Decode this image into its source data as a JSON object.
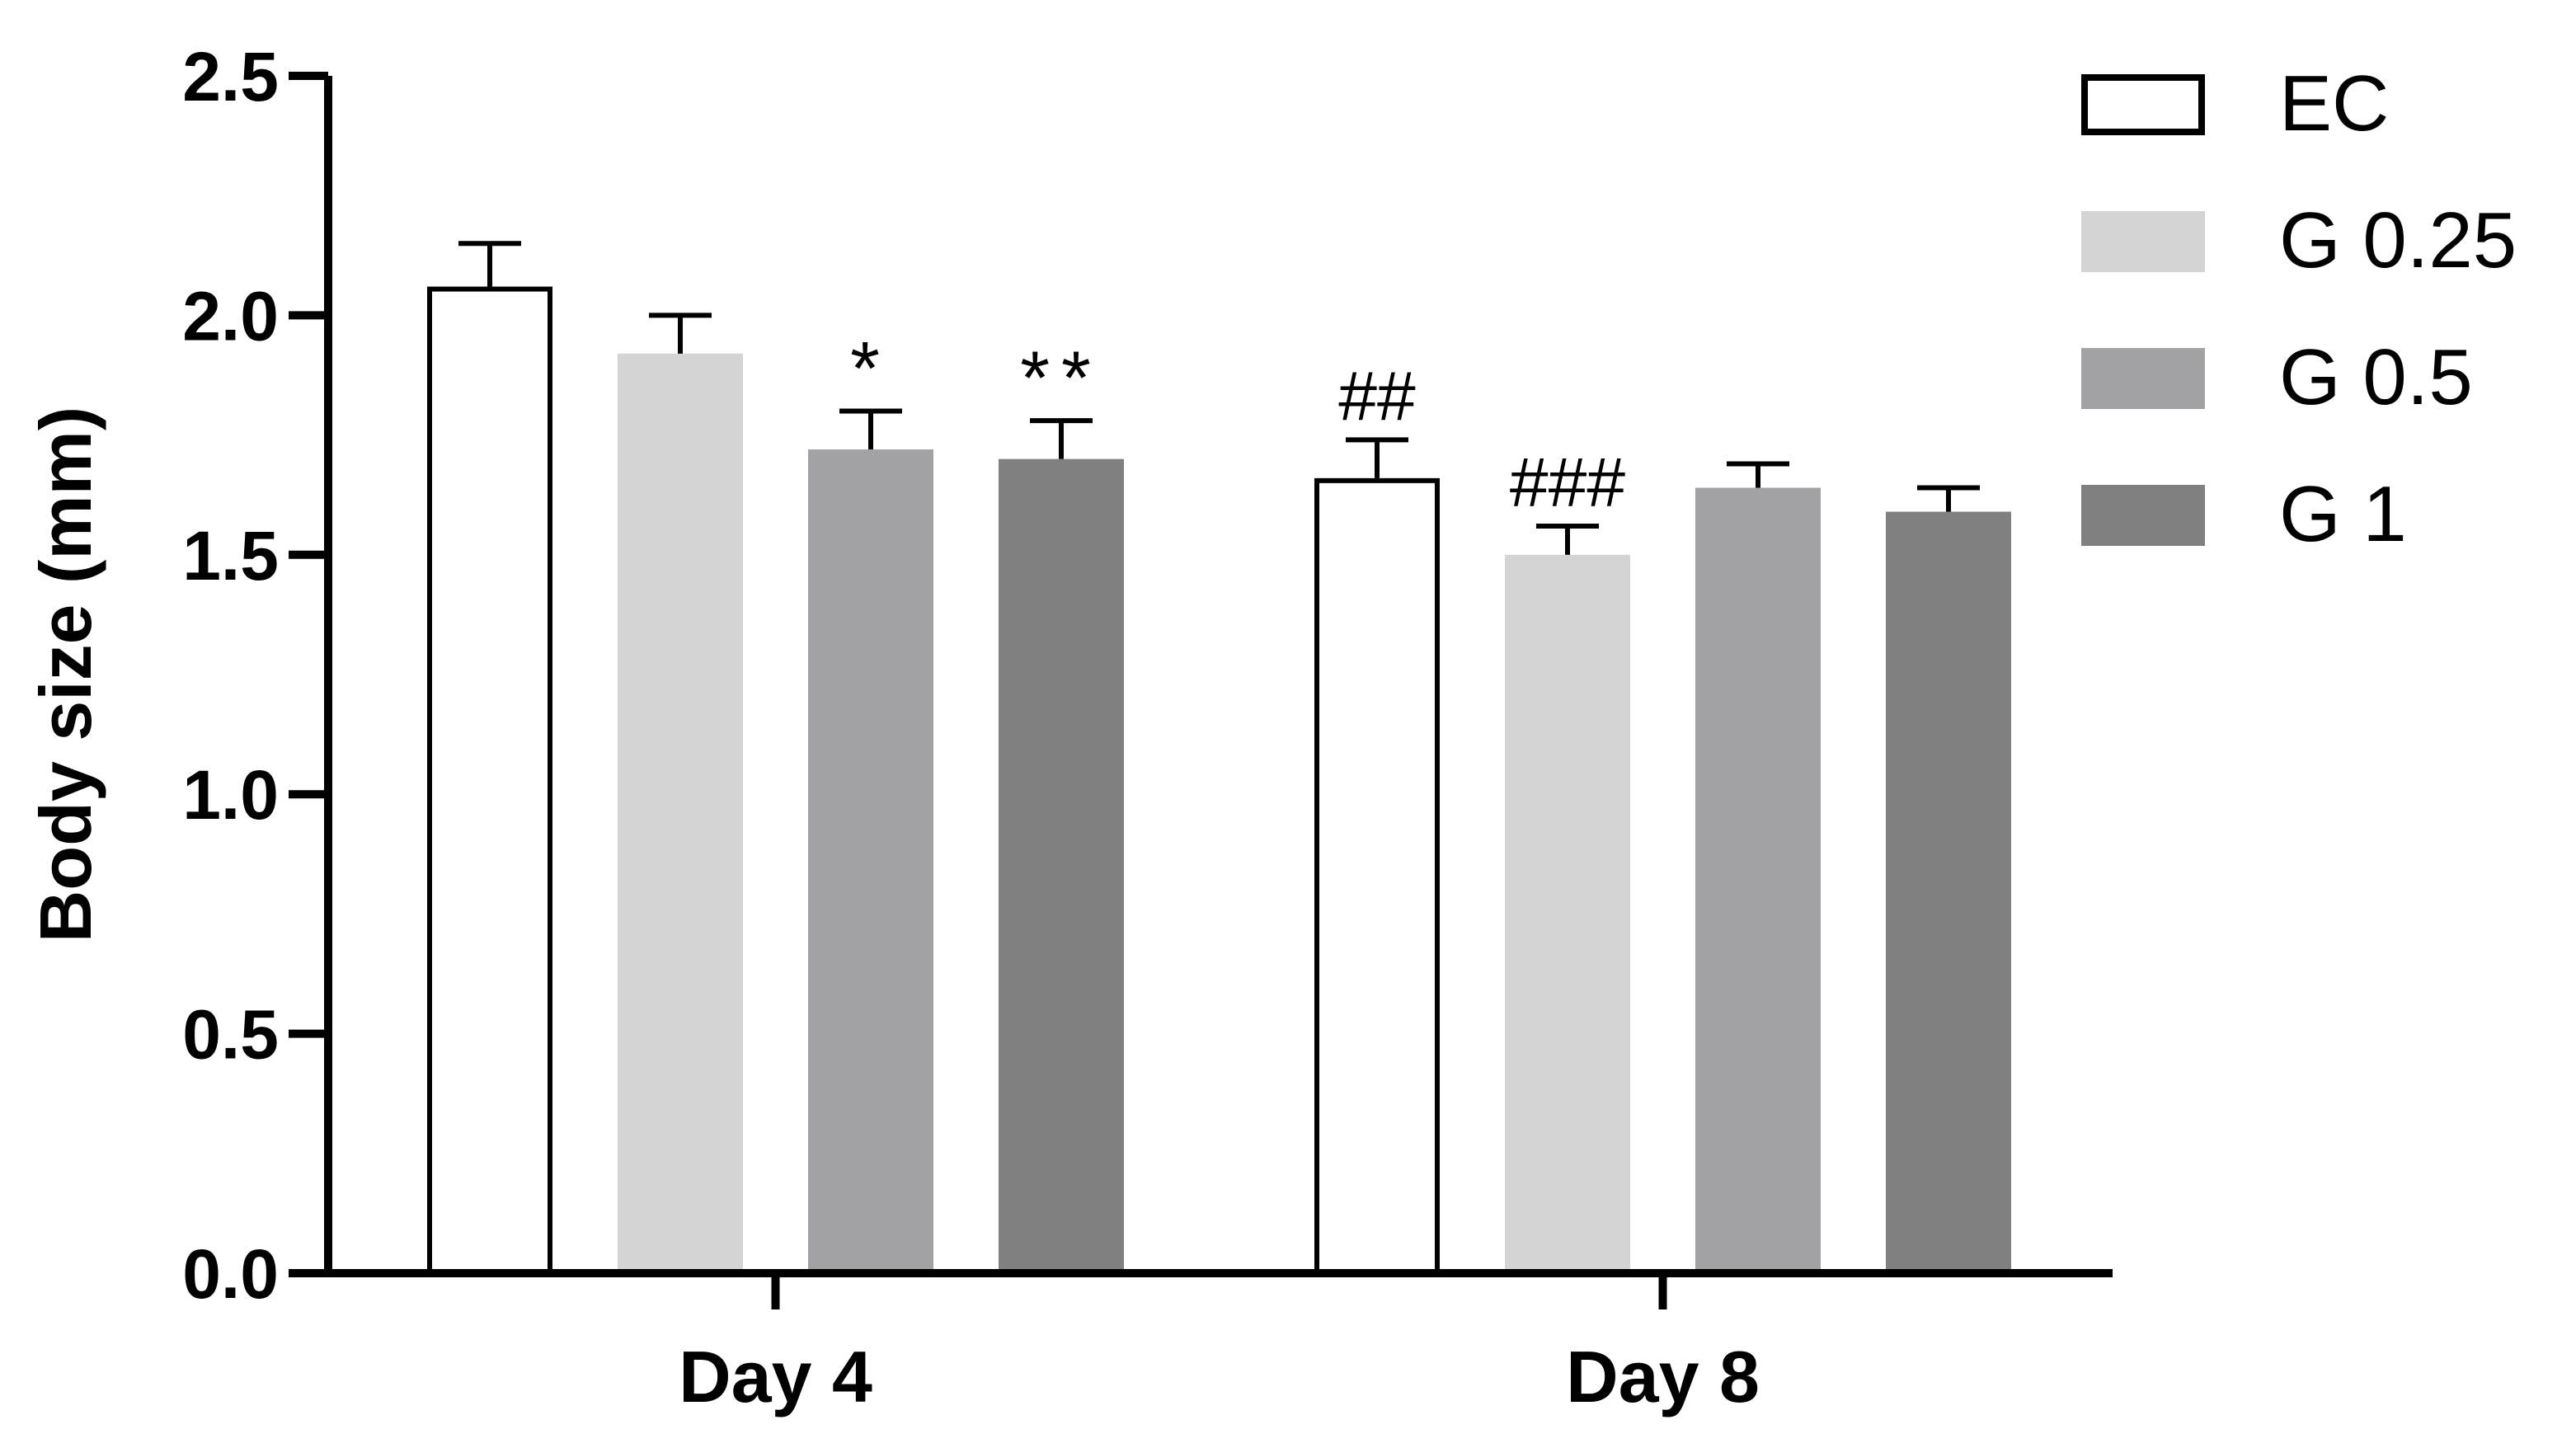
{
  "chart_data": {
    "type": "bar",
    "title": "",
    "xlabel": "",
    "ylabel": "Body size (mm)",
    "ylim": [
      0,
      2.5
    ],
    "yticks": [
      "0.0",
      "0.5",
      "1.0",
      "1.5",
      "2.0",
      "2.5"
    ],
    "categories": [
      "Day 4",
      "Day 8"
    ],
    "legend_position": "top-right",
    "grid": false,
    "series": [
      {
        "name": "EC",
        "color": "#ffffff",
        "outline": "#000000",
        "values": [
          2.06,
          1.66
        ],
        "errors": [
          0.09,
          0.08
        ],
        "annotations": [
          "",
          "##"
        ]
      },
      {
        "name": "G 0.25",
        "color": "#d4d4d4",
        "outline": "none",
        "values": [
          1.92,
          1.5
        ],
        "errors": [
          0.08,
          0.06
        ],
        "annotations": [
          "",
          "###"
        ]
      },
      {
        "name": "G 0.5",
        "color": "#a3a3a6",
        "outline": "none",
        "values": [
          1.72,
          1.64
        ],
        "errors": [
          0.08,
          0.05
        ],
        "annotations": [
          "*",
          ""
        ]
      },
      {
        "name": "G 1",
        "color": "#808080",
        "outline": "none",
        "values": [
          1.7,
          1.59
        ],
        "errors": [
          0.08,
          0.05
        ],
        "annotations": [
          "**",
          ""
        ]
      }
    ]
  }
}
